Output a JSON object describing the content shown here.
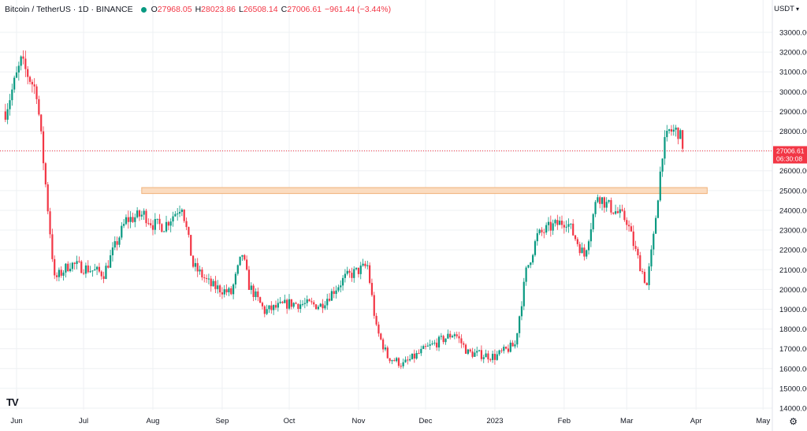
{
  "legend": {
    "symbol": "Bitcoin / TetherUS · 1D · BINANCE",
    "o_label": "O",
    "o": "27968.05",
    "h_label": "H",
    "h": "28023.86",
    "l_label": "L",
    "l": "26508.14",
    "c_label": "C",
    "c": "27006.61",
    "change": "−961.44 (−3.44%)"
  },
  "currency": "USDT",
  "colors": {
    "up": "#089981",
    "down": "#f23645",
    "zone_fill": "#fbdcc0",
    "zone_stroke": "#f0b27a",
    "grid": "#eef0f3"
  },
  "chart_data": {
    "type": "candlestick",
    "title": "Bitcoin / TetherUS · 1D · BINANCE",
    "ylim": [
      14000,
      34000
    ],
    "y_ticks": [
      "33000.00",
      "32000.00",
      "31000.00",
      "30000.00",
      "29000.00",
      "28000.00",
      "27000.00",
      "26000.00",
      "25000.00",
      "24000.00",
      "23000.00",
      "22000.00",
      "21000.00",
      "20000.00",
      "19000.00",
      "18000.00",
      "17000.00",
      "16000.00",
      "15000.00",
      "14000.00"
    ],
    "x_labels": [
      "Jun",
      "Jul",
      "Aug",
      "Sep",
      "Oct",
      "Nov",
      "Dec",
      "2023",
      "Feb",
      "Mar",
      "Apr",
      "May"
    ],
    "last_price": {
      "value": "27006.61",
      "countdown": "06:30:08"
    },
    "zone": {
      "from": 24850,
      "to": 25150,
      "start": "2022-07-27",
      "end": "2023-04-06"
    },
    "series_anchor_dates": [
      "2022-05-27",
      "2022-06-03",
      "2022-06-10",
      "2022-06-13",
      "2022-06-18",
      "2022-06-25",
      "2022-07-10",
      "2022-07-20",
      "2022-07-28",
      "2022-08-01",
      "2022-08-06",
      "2022-08-14",
      "2022-08-19",
      "2022-08-27",
      "2022-09-05",
      "2022-09-10",
      "2022-09-13",
      "2022-09-20",
      "2022-10-01",
      "2022-10-15",
      "2022-10-26",
      "2022-11-05",
      "2022-11-09",
      "2022-11-14",
      "2022-11-21",
      "2022-12-01",
      "2022-12-14",
      "2022-12-20",
      "2023-01-01",
      "2023-01-10",
      "2023-01-15",
      "2023-01-20",
      "2023-01-25",
      "2023-02-02",
      "2023-02-10",
      "2023-02-16",
      "2023-02-20",
      "2023-03-01",
      "2023-03-05",
      "2023-03-10",
      "2023-03-13",
      "2023-03-17",
      "2023-03-20",
      "2023-03-24",
      "2023-03-27"
    ],
    "series_anchor_close": [
      29000,
      31500,
      30000,
      26500,
      20500,
      21300,
      20800,
      23500,
      23800,
      23300,
      23200,
      24300,
      21200,
      20200,
      19800,
      21800,
      20200,
      18900,
      19300,
      19200,
      20600,
      21200,
      18000,
      16600,
      16200,
      17000,
      17800,
      16800,
      16600,
      17200,
      20900,
      22700,
      23100,
      23500,
      21700,
      24800,
      24300,
      23500,
      21900,
      20200,
      22600,
      27000,
      28000,
      28000,
      27007
    ]
  }
}
